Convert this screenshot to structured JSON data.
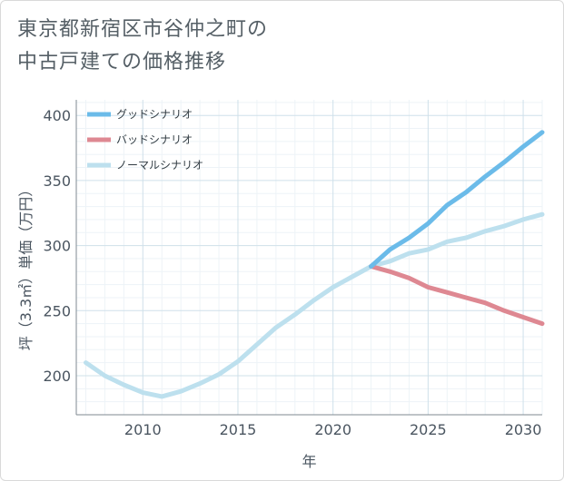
{
  "title_line1": "東京都新宿区市谷仲之町の",
  "title_line2": "中古戸建ての価格推移",
  "chart_data": {
    "type": "line",
    "xlabel": "年",
    "ylabel": "坪（3.3㎡）単価（万円）",
    "xlim": [
      2006.5,
      2031
    ],
    "ylim": [
      170,
      412
    ],
    "x_ticks": [
      2010,
      2015,
      2020,
      2025,
      2030
    ],
    "y_ticks": [
      200,
      250,
      300,
      350,
      400
    ],
    "grid": true,
    "legend_position": "top-left",
    "series": [
      {
        "name": "グッドシナリオ",
        "color": "#6bbbe9",
        "x": [
          2022,
          2023,
          2024,
          2025,
          2026,
          2027,
          2028,
          2029,
          2030,
          2031
        ],
        "y": [
          284,
          297,
          306,
          317,
          331,
          341,
          353,
          364,
          376,
          387
        ]
      },
      {
        "name": "バッドシナリオ",
        "color": "#de8892",
        "x": [
          2022,
          2023,
          2024,
          2025,
          2026,
          2027,
          2028,
          2029,
          2030,
          2031
        ],
        "y": [
          284,
          280,
          275,
          268,
          264,
          260,
          256,
          250,
          245,
          240
        ]
      },
      {
        "name": "ノーマルシナリオ",
        "color": "#bde0ee",
        "x": [
          2007,
          2008,
          2009,
          2010,
          2011,
          2012,
          2013,
          2014,
          2015,
          2016,
          2017,
          2018,
          2019,
          2020,
          2021,
          2022,
          2023,
          2024,
          2025,
          2026,
          2027,
          2028,
          2029,
          2030,
          2031
        ],
        "y": [
          210,
          200,
          193,
          187,
          184,
          188,
          194,
          201,
          211,
          224,
          237,
          247,
          258,
          268,
          276,
          284,
          288,
          294,
          297,
          303,
          306,
          311,
          315,
          320,
          324
        ]
      }
    ]
  }
}
